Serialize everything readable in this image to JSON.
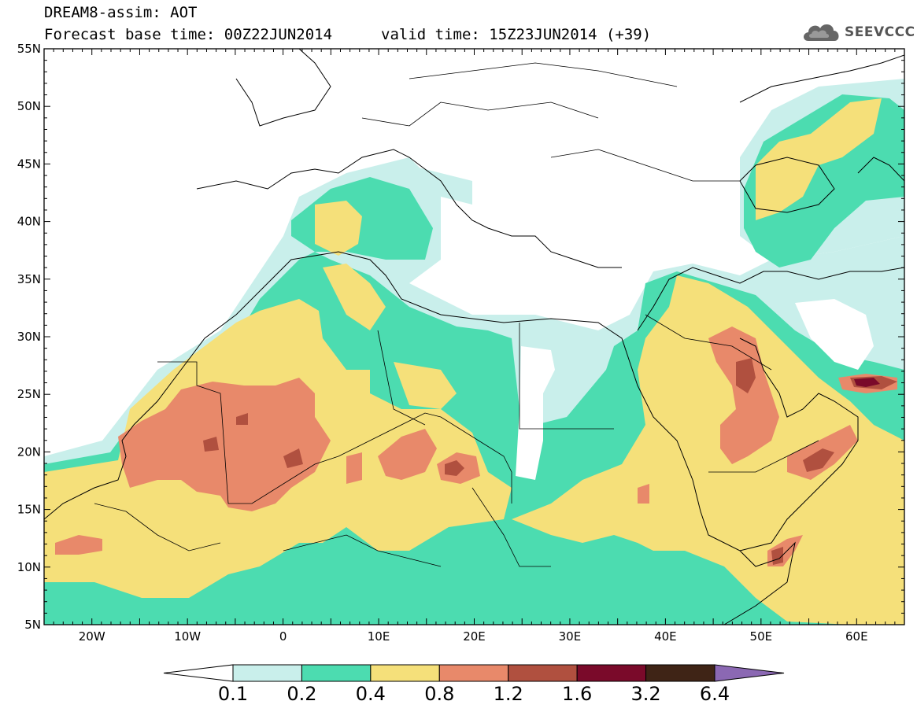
{
  "header": {
    "title": "DREAM8-assim: AOT",
    "base_time": "Forecast base time: 00Z22JUN2014",
    "valid_time": "valid time: 15Z23JUN2014 (+39)"
  },
  "logo": {
    "text": "SEEVCCC",
    "icon": "cloud-icon"
  },
  "map": {
    "lon_range": [
      -25,
      65
    ],
    "lat_range": [
      5,
      55
    ],
    "lat_labels": [
      "55N",
      "50N",
      "45N",
      "40N",
      "35N",
      "30N",
      "25N",
      "20N",
      "15N",
      "10N",
      "5N"
    ],
    "lon_labels": [
      "20W",
      "10W",
      "0",
      "10E",
      "20E",
      "30E",
      "40E",
      "50E",
      "60E"
    ],
    "field": "AOT"
  },
  "colorbar": {
    "levels": [
      "0.1",
      "0.2",
      "0.4",
      "0.8",
      "1.2",
      "1.6",
      "3.2",
      "6.4"
    ],
    "colors": [
      "#ffffff",
      "#c9efeb",
      "#4cdcb0",
      "#f5e07a",
      "#e8896a",
      "#b0503f",
      "#7a0a2a",
      "#3f2416",
      "#8b68b3"
    ]
  }
}
